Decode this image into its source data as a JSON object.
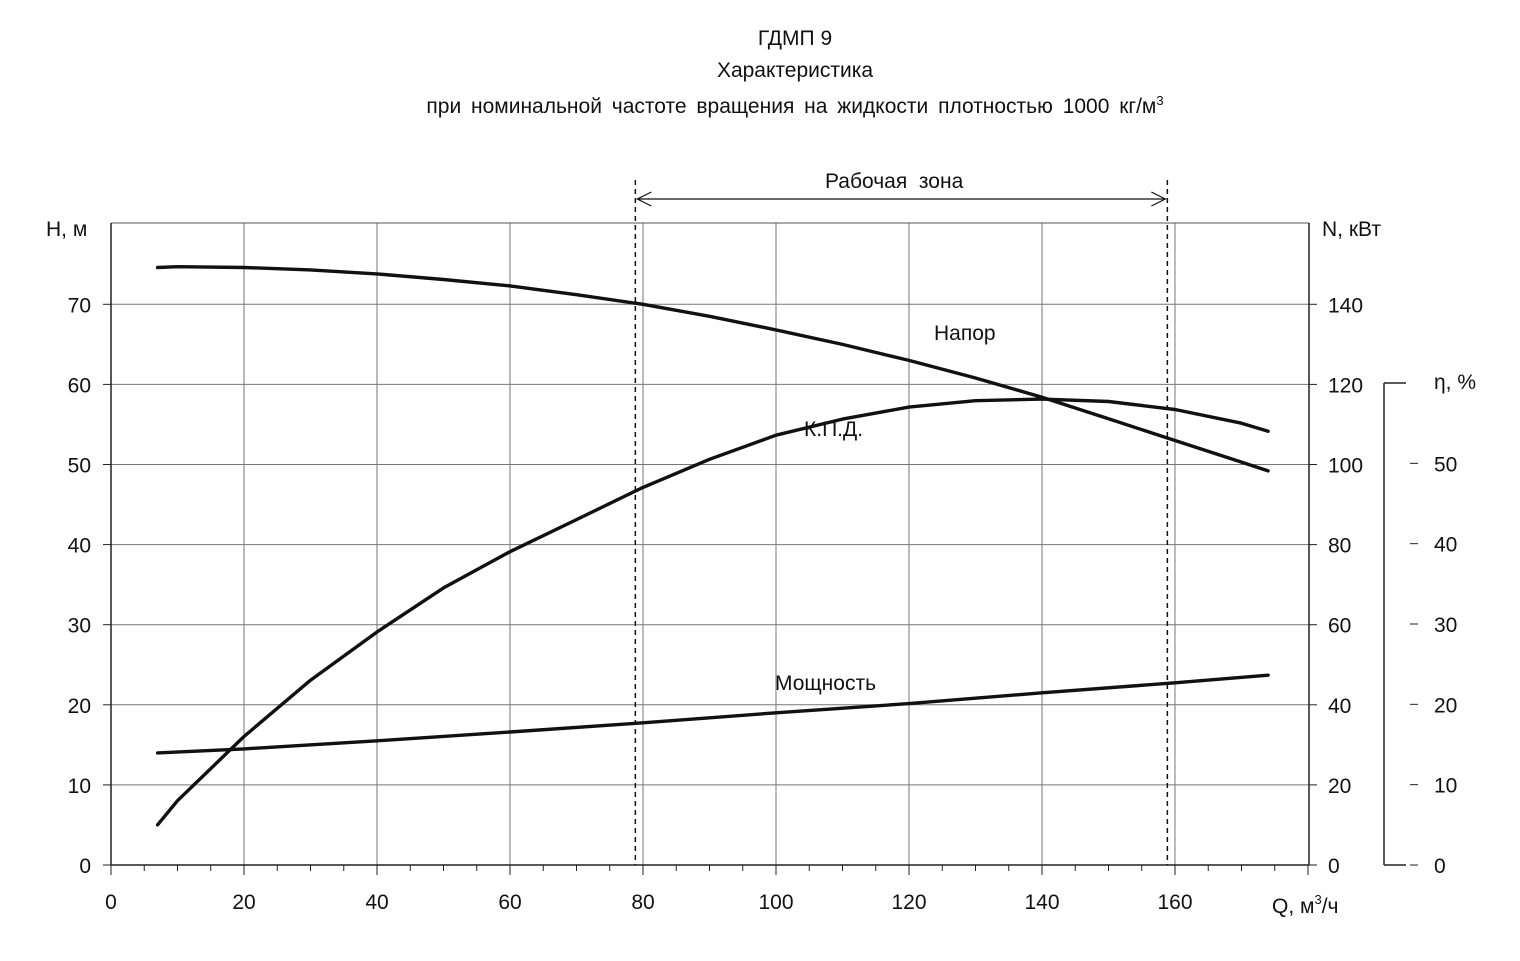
{
  "chart_data": {
    "type": "line",
    "title": "ГДМП 9",
    "subtitle": "Характеристика",
    "subtitle2": "при номинальной  частоте  вращения  на жидкости плотностью 1000 кг/м",
    "subtitle2_sup": "3",
    "xlabel": "Q, м",
    "xlabel_sup": "3",
    "xlabel_tail": "/ч",
    "ylabel_left": "H, м",
    "ylabel_right": "N, кВт",
    "ylabel_eff": "η, %",
    "x_ticks": [
      0,
      20,
      40,
      60,
      80,
      100,
      120,
      140,
      160
    ],
    "y_left_ticks": [
      0,
      10,
      20,
      30,
      40,
      50,
      60,
      70
    ],
    "y_right_ticks": [
      0,
      20,
      40,
      60,
      80,
      100,
      120,
      140
    ],
    "y_eff_ticks": [
      0,
      10,
      20,
      30,
      40,
      50
    ],
    "xlim": [
      0,
      180
    ],
    "ylim_left": [
      0,
      80
    ],
    "ylim_right": [
      0,
      160
    ],
    "ylim_eff": [
      0,
      60
    ],
    "grid": true,
    "working_zone": {
      "label": "Рабочая  зона",
      "from": 79,
      "to": 159
    },
    "series": [
      {
        "name": "Напор",
        "axis": "left",
        "x": [
          7,
          10,
          20,
          30,
          40,
          50,
          60,
          70,
          80,
          90,
          100,
          110,
          120,
          130,
          140,
          150,
          160,
          170,
          174
        ],
        "y": [
          74.6,
          74.7,
          74.6,
          74.3,
          73.8,
          73.1,
          72.3,
          71.2,
          70.0,
          68.5,
          66.8,
          65.0,
          63.0,
          60.8,
          58.4,
          55.7,
          53.0,
          50.3,
          49.2
        ]
      },
      {
        "name": "К.П.Д.",
        "axis": "eff",
        "x": [
          7,
          10,
          20,
          30,
          40,
          50,
          60,
          70,
          80,
          90,
          100,
          110,
          120,
          130,
          140,
          150,
          160,
          170,
          174
        ],
        "y": [
          5,
          8,
          16,
          23,
          29,
          34.5,
          39,
          43,
          47,
          50.5,
          53.5,
          55.5,
          57,
          57.8,
          58,
          57.7,
          56.7,
          55,
          54
        ]
      },
      {
        "name": "Мощность",
        "axis": "right",
        "x": [
          7,
          20,
          40,
          60,
          80,
          100,
          120,
          140,
          160,
          174
        ],
        "y": [
          28,
          29,
          31,
          33.2,
          35.5,
          38,
          40.3,
          43,
          45.5,
          47.4
        ]
      }
    ]
  }
}
